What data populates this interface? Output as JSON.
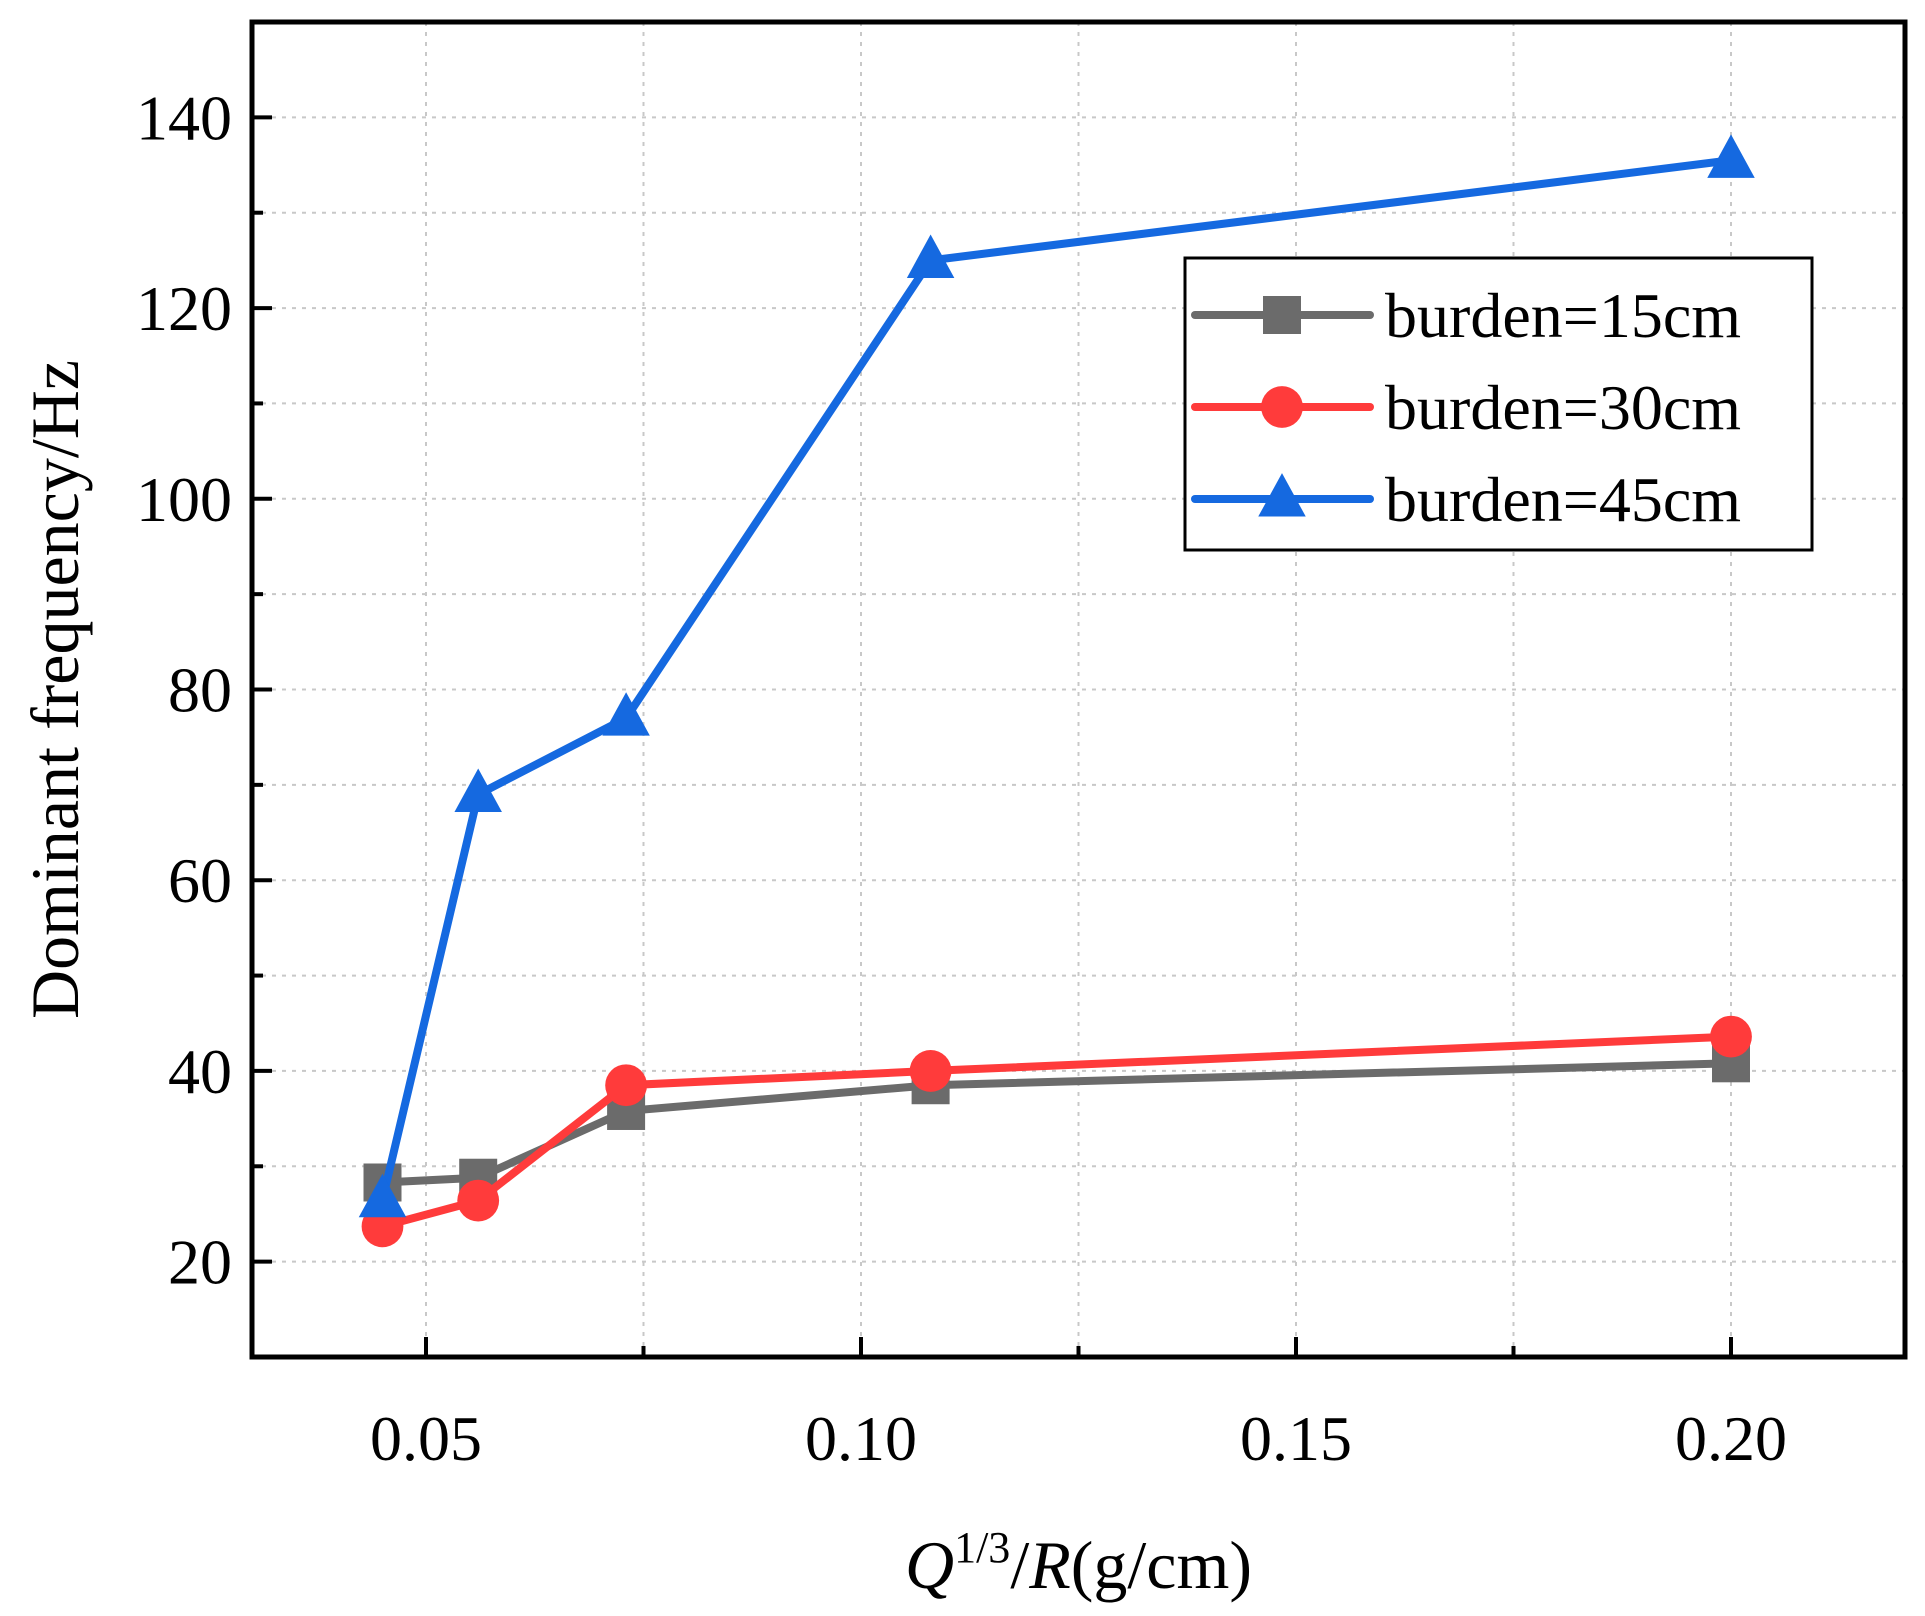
{
  "chart_data": {
    "type": "line",
    "title": "",
    "xlabel": {
      "var1": "Q",
      "sup": "1/3",
      "slash": "/",
      "var2": "R",
      "unit": "(g/cm)"
    },
    "ylabel": "Dominant frequency/Hz",
    "xlim": [
      0.03,
      0.22
    ],
    "ylim": [
      10,
      150
    ],
    "x_ticks": [
      {
        "value": 0.05,
        "label": "0.05"
      },
      {
        "value": 0.1,
        "label": "0.10"
      },
      {
        "value": 0.15,
        "label": "0.15"
      },
      {
        "value": 0.2,
        "label": "0.20"
      }
    ],
    "x_minor_ticks": [
      0.075,
      0.125,
      0.175
    ],
    "y_ticks": [
      {
        "value": 20,
        "label": "20"
      },
      {
        "value": 40,
        "label": "40"
      },
      {
        "value": 60,
        "label": "60"
      },
      {
        "value": 80,
        "label": "80"
      },
      {
        "value": 100,
        "label": "100"
      },
      {
        "value": 120,
        "label": "120"
      },
      {
        "value": 140,
        "label": "140"
      }
    ],
    "y_minor_ticks": [
      30,
      50,
      70,
      90,
      110,
      130
    ],
    "grid": true,
    "legend_position": "top-right",
    "x": [
      0.045,
      0.056,
      0.073,
      0.108,
      0.2
    ],
    "series": [
      {
        "name": "burden=15cm",
        "marker": "square",
        "color": "#6b6b6b",
        "values": [
          28.3,
          28.8,
          35.8,
          38.5,
          40.8
        ]
      },
      {
        "name": "burden=30cm",
        "marker": "circle",
        "color": "#ff3b3b",
        "values": [
          23.7,
          26.4,
          38.5,
          40.0,
          43.6
        ]
      },
      {
        "name": "burden=45cm",
        "marker": "triangle",
        "color": "#1569e0",
        "values": [
          26.5,
          69.0,
          77.0,
          125.0,
          135.5
        ]
      }
    ]
  }
}
